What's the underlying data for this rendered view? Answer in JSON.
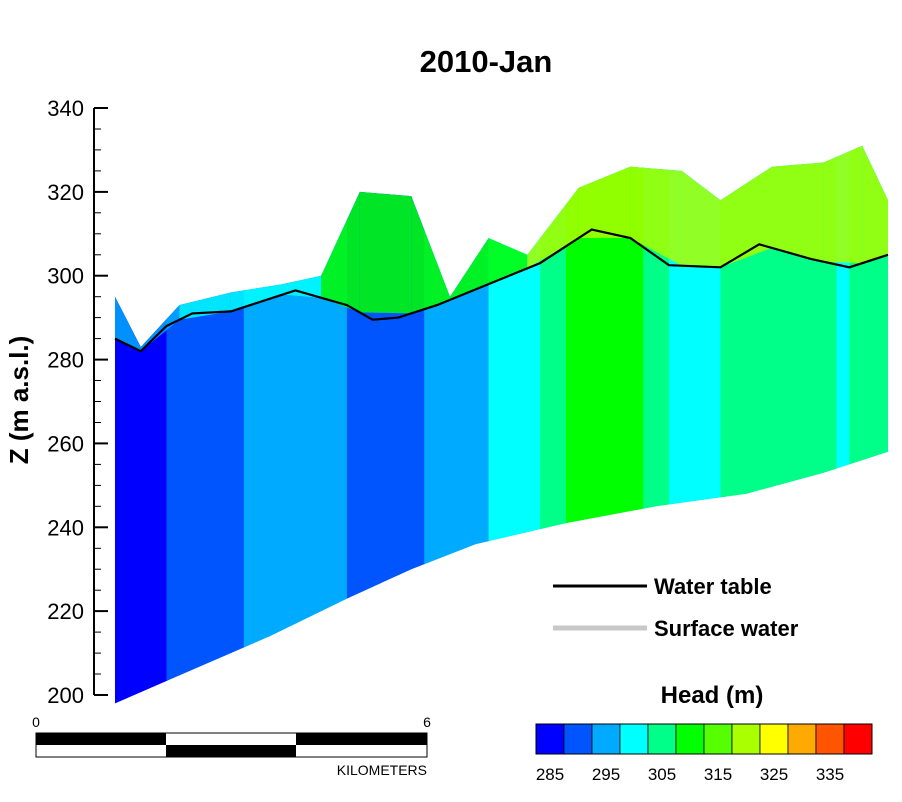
{
  "chart_data": {
    "type": "cross-section",
    "title": "2010-Jan",
    "ylabel": "Z (m a.s.l.)",
    "ylim": [
      200,
      340
    ],
    "yticks": [
      200,
      220,
      240,
      260,
      280,
      300,
      320,
      340
    ],
    "xlim_km": [
      0,
      6
    ],
    "legend": [
      {
        "name": "Water table",
        "color": "#000000"
      },
      {
        "name": "Surface water",
        "color": "#c8c8c8"
      }
    ],
    "water_table": {
      "x_km": [
        0.0,
        0.2,
        0.4,
        0.6,
        0.9,
        1.4,
        1.8,
        2.0,
        2.2,
        2.5,
        2.9,
        3.3,
        3.7,
        4.0,
        4.3,
        4.7,
        5.0,
        5.4,
        5.7,
        6.0
      ],
      "z": [
        285,
        282,
        288,
        291,
        291.5,
        296.5,
        293,
        289.5,
        290,
        293,
        298,
        303,
        311,
        309,
        302.5,
        302,
        307.5,
        304,
        302,
        305
      ]
    },
    "surface_top": {
      "x_km": [
        0.0,
        0.2,
        0.5,
        0.9,
        1.3,
        1.6,
        1.9,
        2.3,
        2.6,
        2.9,
        3.2,
        3.6,
        4.0,
        4.4,
        4.7,
        5.1,
        5.5,
        5.8,
        6.0
      ],
      "z": [
        295,
        283,
        293,
        296,
        298,
        300,
        320,
        319,
        295,
        309,
        305,
        321,
        326,
        325,
        318,
        326,
        327,
        331,
        318
      ]
    },
    "bottom": {
      "x_km": [
        0.0,
        0.6,
        1.2,
        1.8,
        2.3,
        2.8,
        3.5,
        4.2,
        4.9,
        5.5,
        6.0
      ],
      "z": [
        198,
        206,
        214,
        223,
        230,
        236,
        241,
        245,
        248,
        253,
        258
      ]
    },
    "colorbar": {
      "title": "Head (m)",
      "min": 282.5,
      "step": 5,
      "colors": [
        "#0000ff",
        "#0055ff",
        "#00aaff",
        "#00ffff",
        "#00ff88",
        "#00ff00",
        "#55ff00",
        "#aaff00",
        "#ffff00",
        "#ffaa00",
        "#ff5500",
        "#ff0000"
      ],
      "labels": [
        "285",
        "295",
        "305",
        "315",
        "325",
        "335"
      ]
    },
    "scale_bar": {
      "start_label": "0",
      "end_label": "6",
      "unit_label": "KILOMETERS"
    }
  }
}
